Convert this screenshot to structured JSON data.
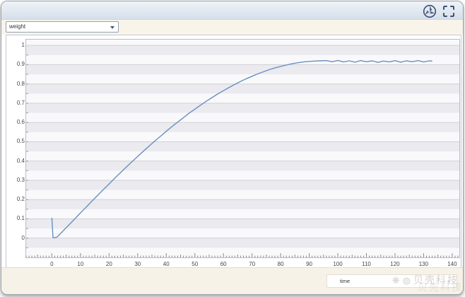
{
  "window": {
    "titlebar": {
      "icons": [
        {
          "name": "aperture-icon"
        },
        {
          "name": "fullscreen-icon"
        }
      ]
    },
    "toolbar": {
      "series_selector": {
        "value": "weight"
      }
    },
    "bottom_bar": {
      "axis_box": {
        "value": "time",
        "dash": "-"
      }
    },
    "watermark": {
      "glyph1": "❋",
      "glyph2": "◍",
      "text": "贝壳科技"
    }
  },
  "colors": {
    "curve": "#6a90bf",
    "stripe_gray": "#eaeaef",
    "stripe_white": "#f9f9fb",
    "gridline": "#cfcfd6",
    "plot_border": "#b9bcc4",
    "icon": "#3d4f73",
    "titlebar_top": "#eef3f9",
    "titlebar_bottom": "#d6dfea",
    "toolbar_bg": "#f8f4ea",
    "bottombar_bg": "#f7f2e7"
  },
  "chart_data": {
    "type": "line",
    "title": "",
    "xlabel": "time",
    "ylabel": "weight",
    "xlim": [
      -9,
      142.5
    ],
    "ylim": [
      -0.1,
      1.03
    ],
    "x_ticks": [
      0,
      10,
      20,
      30,
      40,
      50,
      60,
      70,
      80,
      90,
      100,
      110,
      120,
      130,
      140
    ],
    "y_ticks": [
      1,
      0.9,
      0.8,
      0.7,
      0.6,
      0.5,
      0.4,
      0.3,
      0.2,
      0.1,
      0
    ],
    "y_tick_labels": [
      "1",
      "0.9",
      "0.8",
      "0.7",
      "0.6",
      "0.5",
      "0.4",
      "0.3",
      "0.2",
      "0.1",
      "0"
    ],
    "grid": "horizontal",
    "background": "striped-bands-0.05",
    "legend": "none",
    "series": [
      {
        "name": "weight",
        "color": "#6a90bf",
        "points": [
          [
            0,
            0.105
          ],
          [
            0.4,
            0.002
          ],
          [
            1.5,
            0.004
          ],
          [
            2,
            0.008
          ],
          [
            4,
            0.039
          ],
          [
            6,
            0.069
          ],
          [
            8,
            0.1
          ],
          [
            10,
            0.131
          ],
          [
            12,
            0.161
          ],
          [
            14,
            0.192
          ],
          [
            16,
            0.222
          ],
          [
            18,
            0.252
          ],
          [
            20,
            0.281
          ],
          [
            22,
            0.311
          ],
          [
            24,
            0.34
          ],
          [
            26,
            0.368
          ],
          [
            28,
            0.396
          ],
          [
            30,
            0.424
          ],
          [
            32,
            0.451
          ],
          [
            34,
            0.478
          ],
          [
            36,
            0.504
          ],
          [
            38,
            0.529
          ],
          [
            40,
            0.554
          ],
          [
            42,
            0.579
          ],
          [
            44,
            0.602
          ],
          [
            46,
            0.625
          ],
          [
            48,
            0.648
          ],
          [
            50,
            0.669
          ],
          [
            52,
            0.69
          ],
          [
            54,
            0.71
          ],
          [
            56,
            0.729
          ],
          [
            58,
            0.748
          ],
          [
            60,
            0.765
          ],
          [
            62,
            0.782
          ],
          [
            64,
            0.798
          ],
          [
            66,
            0.813
          ],
          [
            68,
            0.827
          ],
          [
            70,
            0.84
          ],
          [
            72,
            0.852
          ],
          [
            74,
            0.863
          ],
          [
            76,
            0.874
          ],
          [
            78,
            0.883
          ],
          [
            80,
            0.891
          ],
          [
            82,
            0.898
          ],
          [
            84,
            0.905
          ],
          [
            86,
            0.91
          ],
          [
            88,
            0.914
          ],
          [
            90,
            0.917
          ],
          [
            92,
            0.919
          ],
          [
            94,
            0.92
          ],
          [
            96,
            0.921
          ],
          [
            98,
            0.915
          ],
          [
            100,
            0.922
          ],
          [
            102,
            0.914
          ],
          [
            104,
            0.92
          ],
          [
            106,
            0.913
          ],
          [
            108,
            0.921
          ],
          [
            110,
            0.915
          ],
          [
            112,
            0.92
          ],
          [
            114,
            0.912
          ],
          [
            116,
            0.919
          ],
          [
            118,
            0.914
          ],
          [
            120,
            0.921
          ],
          [
            122,
            0.913
          ],
          [
            124,
            0.92
          ],
          [
            126,
            0.915
          ],
          [
            128,
            0.921
          ],
          [
            130,
            0.914
          ],
          [
            132,
            0.92
          ],
          [
            133,
            0.918
          ]
        ]
      }
    ]
  }
}
